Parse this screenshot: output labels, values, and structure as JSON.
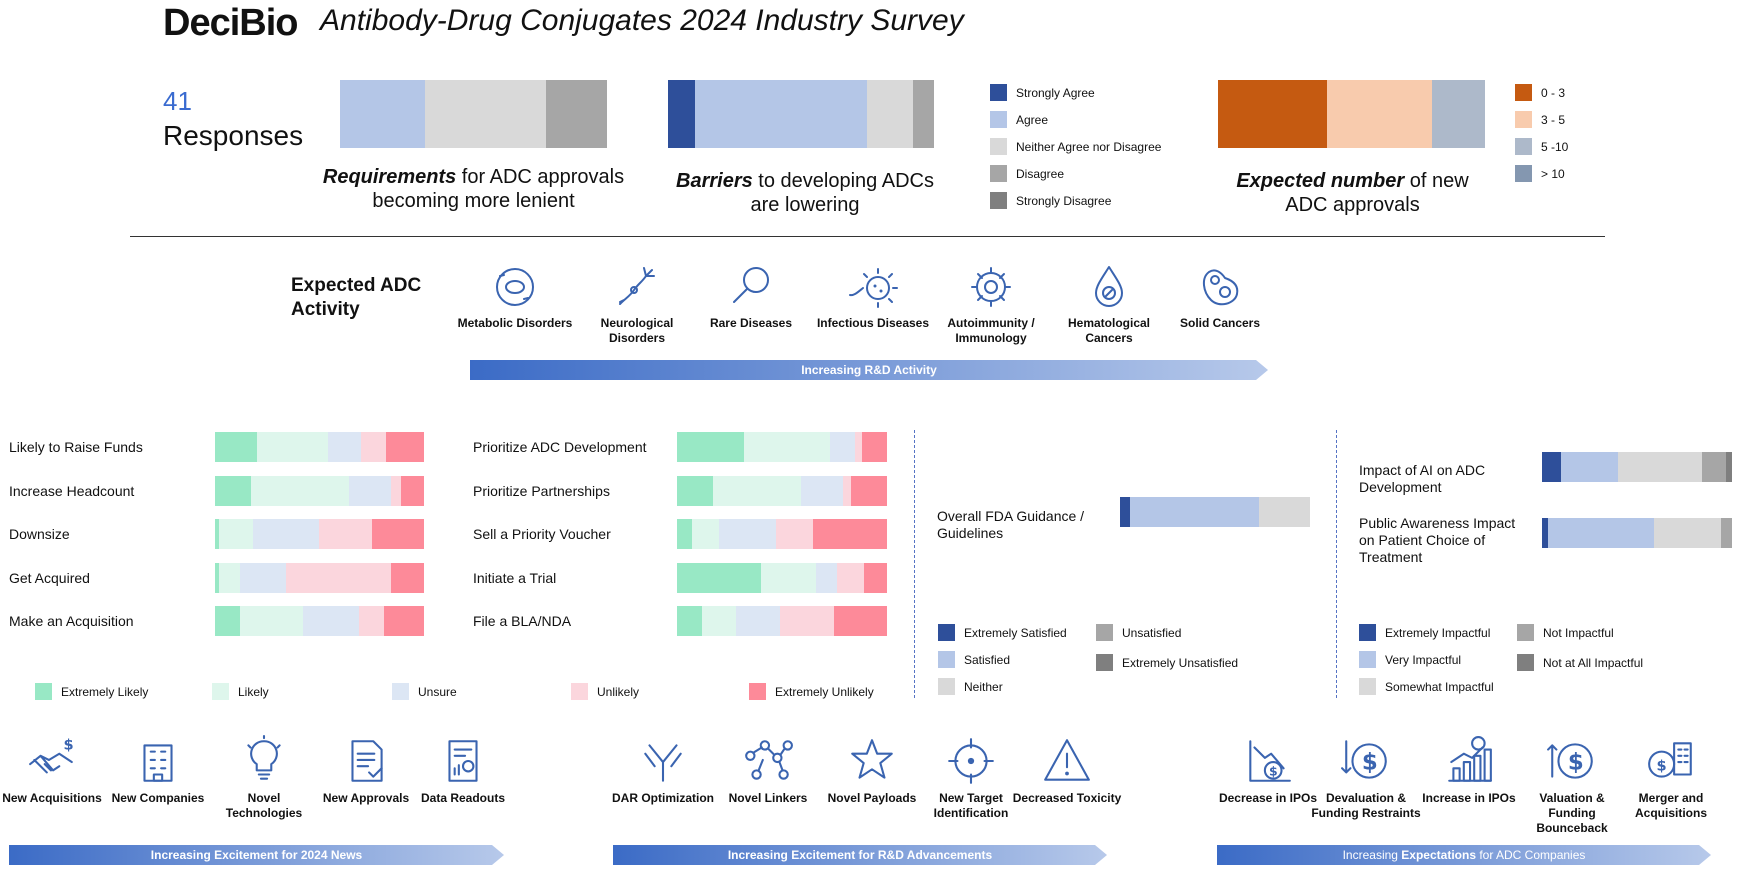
{
  "header": {
    "logo": "DeciBio",
    "title": "Antibody-Drug Conjugates 2024 Industry Survey",
    "responses_count": "41",
    "responses_label": "Responses"
  },
  "agreement_legend": [
    {
      "label": "Strongly Agree",
      "color": "#2e4f9a"
    },
    {
      "label": "Agree",
      "color": "#b4c6e7"
    },
    {
      "label": "Neither Agree nor Disagree",
      "color": "#d9d9d9"
    },
    {
      "label": "Disagree",
      "color": "#a6a6a6"
    },
    {
      "label": "Strongly Disagree",
      "color": "#7f7f7f"
    }
  ],
  "approvals_legend": [
    {
      "label": "0 - 3",
      "color": "#c55a11"
    },
    {
      "label": "3 - 5",
      "color": "#f8cbad"
    },
    {
      "label": "5 -10",
      "color": "#adb9ca"
    },
    {
      "label": "> 10",
      "color": "#8497b0"
    }
  ],
  "captions": {
    "requirements_bold": "Requirements",
    "requirements_rest": " for ADC approvals becoming more lenient",
    "barriers_bold": "Barriers",
    "barriers_rest": " to developing ADCs are lowering",
    "expected_bold": "Expected number",
    "expected_rest": " of new ADC approvals"
  },
  "activity": {
    "title": "Expected ADC Activity",
    "items": [
      {
        "label": "Metabolic Disorders",
        "icon": "metabolic-icon"
      },
      {
        "label": "Neurological Disorders",
        "icon": "neuron-icon"
      },
      {
        "label": "Rare Diseases",
        "icon": "magnifier-icon"
      },
      {
        "label": "Infectious Diseases",
        "icon": "virus-icon"
      },
      {
        "label": "Autoimmunity / Immunology",
        "icon": "immune-icon"
      },
      {
        "label": "Hematological Cancers",
        "icon": "blood-drop-icon"
      },
      {
        "label": "Solid Cancers",
        "icon": "cell-icon"
      }
    ],
    "arrow_label": "Increasing R&D Activity"
  },
  "likelihood_legend": [
    {
      "label": "Extremely Likely",
      "color": "#98e8c5"
    },
    {
      "label": "Likely",
      "color": "#def6ec"
    },
    {
      "label": "Unsure",
      "color": "#dce6f4"
    },
    {
      "label": "Unlikely",
      "color": "#fbd6dd"
    },
    {
      "label": "Extremely Unlikely",
      "color": "#fd8a99"
    }
  ],
  "satisfaction_legend": [
    {
      "label": "Extremely Satisfied",
      "color": "#2e4f9a"
    },
    {
      "label": "Satisfied",
      "color": "#b4c6e7"
    },
    {
      "label": "Neither",
      "color": "#d9d9d9"
    },
    {
      "label": "Unsatisfied",
      "color": "#a6a6a6"
    },
    {
      "label": "Extremely Unsatisfied",
      "color": "#7f7f7f"
    }
  ],
  "impact_legend": [
    {
      "label": "Extremely Impactful",
      "color": "#2e4f9a"
    },
    {
      "label": "Very Impactful",
      "color": "#b4c6e7"
    },
    {
      "label": "Somewhat Impactful",
      "color": "#d9d9d9"
    },
    {
      "label": "Not Impactful",
      "color": "#a6a6a6"
    },
    {
      "label": "Not at All Impactful",
      "color": "#7f7f7f"
    }
  ],
  "news": {
    "groups": [
      {
        "arrow_label": "Increasing Excitement for 2024 News",
        "items": [
          {
            "label": "New Acquisitions",
            "icon": "handshake-icon"
          },
          {
            "label": "New Companies",
            "icon": "building-icon"
          },
          {
            "label": "Novel Technologies",
            "icon": "lightbulb-icon"
          },
          {
            "label": "New Approvals",
            "icon": "document-check-icon"
          },
          {
            "label": "Data Readouts",
            "icon": "report-icon"
          }
        ]
      },
      {
        "arrow_label": "Increasing Excitement for R&D Advancements",
        "items": [
          {
            "label": "DAR Optimization",
            "icon": "antibody-icon"
          },
          {
            "label": "Novel Linkers",
            "icon": "linker-icon"
          },
          {
            "label": "Novel Payloads",
            "icon": "star-icon"
          },
          {
            "label": "New Target Identification",
            "icon": "target-icon"
          },
          {
            "label": "Decreased Toxicity",
            "icon": "warning-icon"
          }
        ]
      },
      {
        "arrow_label_pre": "Increasing ",
        "arrow_label_bold": "Expectations",
        "arrow_label_post": " for ADC Companies",
        "items": [
          {
            "label": "Decrease in IPOs",
            "icon": "chart-down-icon"
          },
          {
            "label": "Devaluation & Funding Restraints",
            "icon": "dollar-down-icon"
          },
          {
            "label": "Increase in IPOs",
            "icon": "chart-up-icon"
          },
          {
            "label": "Valuation & Funding Bounceback",
            "icon": "dollar-up-icon"
          },
          {
            "label": "Merger and Acquisitions",
            "icon": "merger-icon"
          }
        ]
      }
    ]
  },
  "chart_data": [
    {
      "type": "bar",
      "orientation": "horizontal-stacked",
      "id": "requirements",
      "categories": [
        "Strongly Agree",
        "Agree",
        "Neither Agree nor Disagree",
        "Disagree",
        "Strongly Disagree"
      ],
      "values": [
        0,
        32,
        45,
        23,
        0
      ]
    },
    {
      "type": "bar",
      "orientation": "horizontal-stacked",
      "id": "barriers",
      "categories": [
        "Strongly Agree",
        "Agree",
        "Neither Agree nor Disagree",
        "Disagree",
        "Strongly Disagree"
      ],
      "values": [
        10,
        65,
        17,
        8,
        0
      ]
    },
    {
      "type": "bar",
      "orientation": "horizontal-stacked",
      "id": "expected_approvals",
      "categories": [
        "0 - 3",
        "3 - 5",
        "5 -10",
        "> 10"
      ],
      "values": [
        41,
        39,
        20,
        0
      ]
    },
    {
      "type": "bar",
      "orientation": "horizontal-stacked",
      "id": "likelihood_left",
      "categories": [
        "Extremely Likely",
        "Likely",
        "Unsure",
        "Unlikely",
        "Extremely Unlikely"
      ],
      "rows": [
        {
          "label": "Likely to Raise Funds",
          "values": [
            20,
            34,
            16,
            12,
            18
          ]
        },
        {
          "label": "Increase Headcount",
          "values": [
            17,
            47,
            20,
            5,
            11
          ]
        },
        {
          "label": "Downsize",
          "values": [
            2,
            16,
            32,
            25,
            25
          ]
        },
        {
          "label": "Get Acquired",
          "values": [
            2,
            10,
            22,
            50,
            16
          ]
        },
        {
          "label": "Make an Acquisition",
          "values": [
            12,
            30,
            27,
            12,
            19
          ]
        }
      ]
    },
    {
      "type": "bar",
      "orientation": "horizontal-stacked",
      "id": "likelihood_right",
      "categories": [
        "Extremely Likely",
        "Likely",
        "Unsure",
        "Unlikely",
        "Extremely Unlikely"
      ],
      "rows": [
        {
          "label": "Prioritize ADC Development",
          "values": [
            32,
            41,
            12,
            3,
            12
          ]
        },
        {
          "label": "Prioritize Partnerships",
          "values": [
            17,
            42,
            20,
            4,
            17
          ]
        },
        {
          "label": "Sell a Priority Voucher",
          "values": [
            7,
            13,
            27,
            18,
            35
          ]
        },
        {
          "label": "Initiate a Trial",
          "values": [
            40,
            26,
            10,
            13,
            11
          ]
        },
        {
          "label": "File a BLA/NDA",
          "values": [
            12,
            16,
            21,
            26,
            25
          ]
        }
      ]
    },
    {
      "type": "bar",
      "orientation": "horizontal-stacked",
      "id": "fda_satisfaction",
      "categories": [
        "Extremely Satisfied",
        "Satisfied",
        "Neither",
        "Unsatisfied",
        "Extremely Unsatisfied"
      ],
      "rows": [
        {
          "label": "Overall FDA Guidance / Guidelines",
          "values": [
            5,
            68,
            27,
            0,
            0
          ]
        }
      ]
    },
    {
      "type": "bar",
      "orientation": "horizontal-stacked",
      "id": "impact",
      "categories": [
        "Extremely Impactful",
        "Very Impactful",
        "Somewhat Impactful",
        "Not Impactful",
        "Not at All Impactful"
      ],
      "rows": [
        {
          "label": "Impact of AI on ADC Development",
          "values": [
            10,
            30,
            44,
            13,
            3
          ]
        },
        {
          "label": "Public Awareness Impact on Patient Choice of Treatment",
          "values": [
            3,
            56,
            35,
            6,
            0
          ]
        }
      ]
    }
  ]
}
